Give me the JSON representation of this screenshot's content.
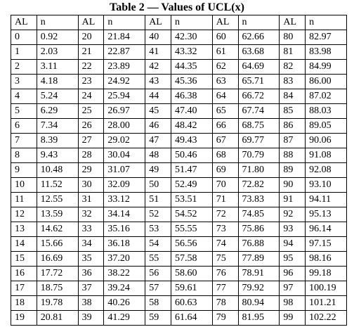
{
  "title": "Table 2 — Values of UCL(x)",
  "headers": [
    "AL",
    "n",
    "AL",
    "n",
    "AL",
    "n",
    "AL",
    "n",
    "AL",
    "n"
  ],
  "rows": [
    [
      "0",
      "0.92",
      "20",
      "21.84",
      "40",
      "42.30",
      "60",
      "62.66",
      "80",
      "82.97"
    ],
    [
      "1",
      "2.03",
      "21",
      "22.87",
      "41",
      "43.32",
      "61",
      "63.68",
      "81",
      "83.98"
    ],
    [
      "2",
      "3.11",
      "22",
      "23.89",
      "42",
      "44.35",
      "62",
      "64.69",
      "82",
      "84.99"
    ],
    [
      "3",
      "4.18",
      "23",
      "24.92",
      "43",
      "45.36",
      "63",
      "65.71",
      "83",
      "86.00"
    ],
    [
      "4",
      "5.24",
      "24",
      "25.94",
      "44",
      "46.38",
      "64",
      "66.72",
      "84",
      "87.02"
    ],
    [
      "5",
      "6.29",
      "25",
      "26.97",
      "45",
      "47.40",
      "65",
      "67.74",
      "85",
      "88.03"
    ],
    [
      "6",
      "7.34",
      "26",
      "28.00",
      "46",
      "48.42",
      "66",
      "68.75",
      "86",
      "89.05"
    ],
    [
      "7",
      "8.39",
      "27",
      "29.02",
      "47",
      "49.43",
      "67",
      "69.77",
      "87",
      "90.06"
    ],
    [
      "8",
      "9.43",
      "28",
      "30.04",
      "48",
      "50.46",
      "68",
      "70.79",
      "88",
      "91.08"
    ],
    [
      "9",
      "10.48",
      "29",
      "31.07",
      "49",
      "51.47",
      "69",
      "71.80",
      "89",
      "92.08"
    ],
    [
      "10",
      "11.52",
      "30",
      "32.09",
      "50",
      "52.49",
      "70",
      "72.82",
      "90",
      "93.10"
    ],
    [
      "11",
      "12.55",
      "31",
      "33.12",
      "51",
      "53.51",
      "71",
      "73.83",
      "91",
      "94.11"
    ],
    [
      "12",
      "13.59",
      "32",
      "34.14",
      "52",
      "54.52",
      "72",
      "74.85",
      "92",
      "95.13"
    ],
    [
      "13",
      "14.62",
      "33",
      "35.16",
      "53",
      "55.55",
      "73",
      "75.86",
      "93",
      "96.14"
    ],
    [
      "14",
      "15.66",
      "34",
      "36.18",
      "54",
      "56.56",
      "74",
      "76.88",
      "94",
      "97.15"
    ],
    [
      "15",
      "16.69",
      "35",
      "37.20",
      "55",
      "57.58",
      "75",
      "77.89",
      "95",
      "98.16"
    ],
    [
      "16",
      "17.72",
      "36",
      "38.22",
      "56",
      "58.60",
      "76",
      "78.91",
      "96",
      "99.18"
    ],
    [
      "17",
      "18.75",
      "37",
      "39.24",
      "57",
      "59.61",
      "77",
      "79.92",
      "97",
      "100.19"
    ],
    [
      "18",
      "19.78",
      "38",
      "40.26",
      "58",
      "60.63",
      "78",
      "80.94",
      "98",
      "101.21"
    ],
    [
      "19",
      "20.81",
      "39",
      "41.29",
      "59",
      "61.64",
      "79",
      "81.95",
      "99",
      "102.22"
    ]
  ]
}
